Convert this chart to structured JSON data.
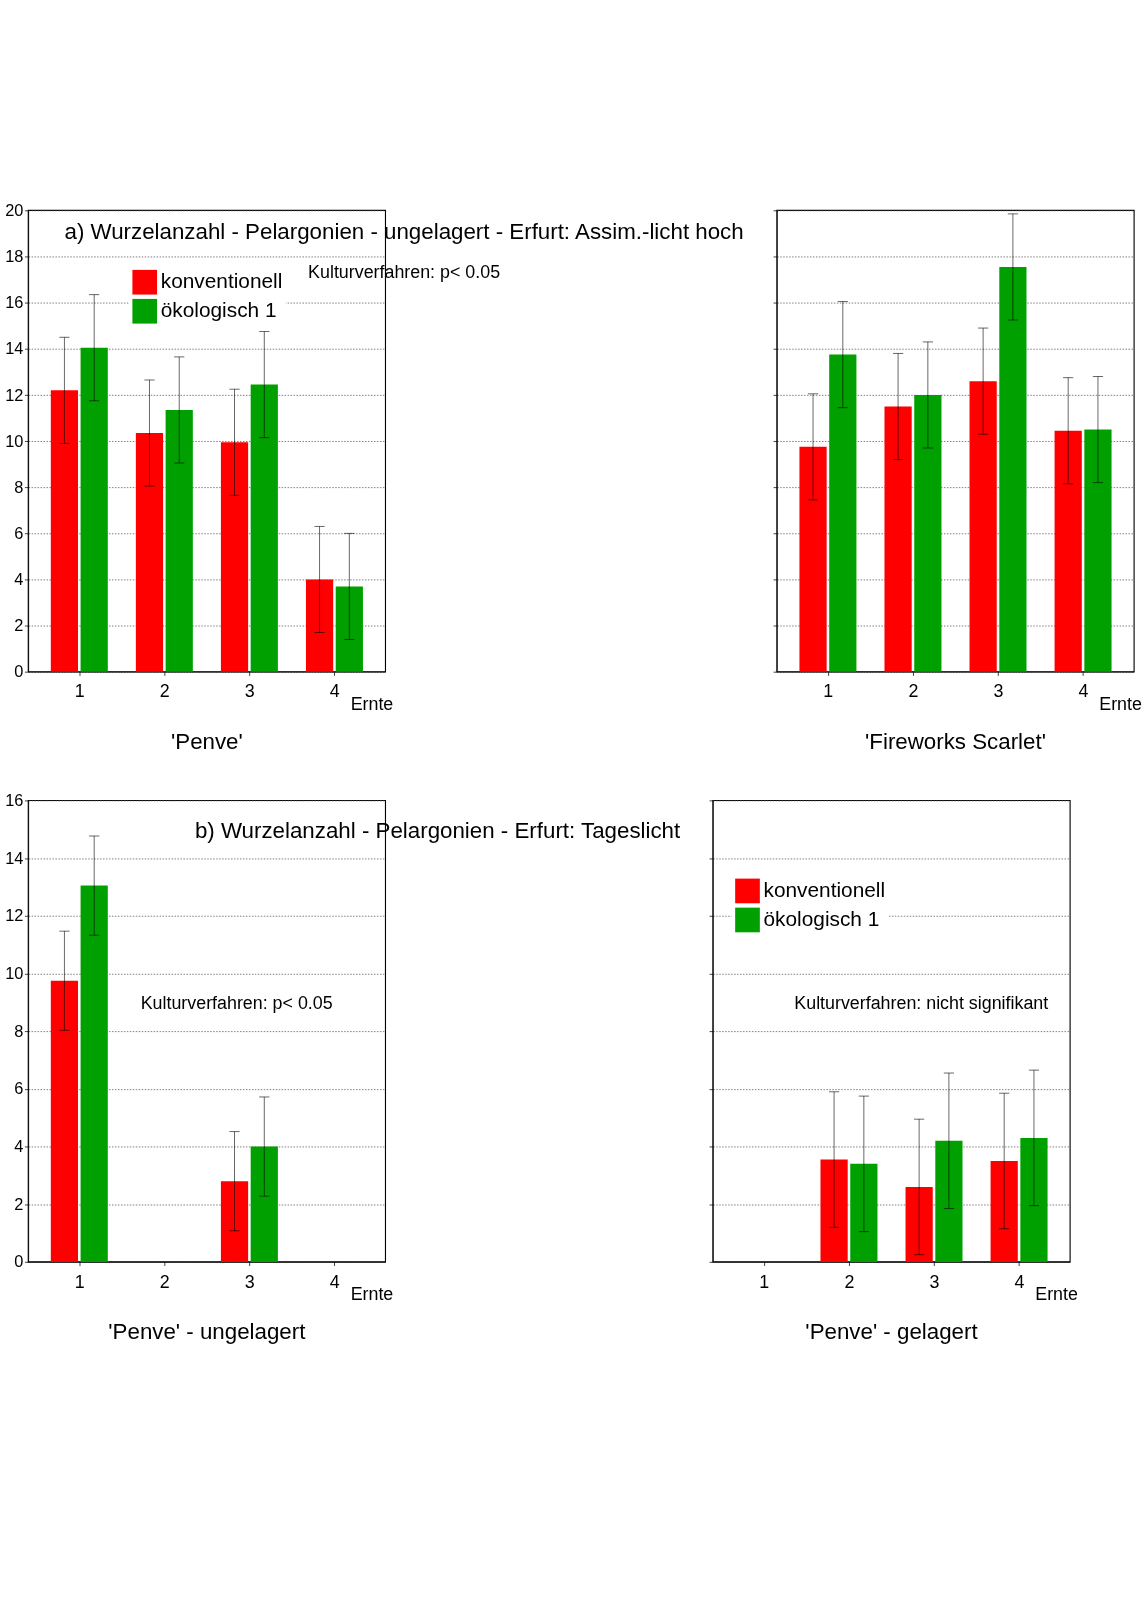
{
  "chart_data": [
    {
      "type": "bar",
      "title": "'Penve'",
      "xlabel": "Ernte",
      "categories": [
        "1",
        "2",
        "3",
        "4"
      ],
      "ylim": [
        0,
        20
      ],
      "yticks": [
        0,
        2,
        4,
        6,
        8,
        10,
        12,
        14,
        16,
        18,
        20
      ],
      "grid": "y",
      "legend": "top left",
      "annotations": [
        "a) Wurzelanzahl - Pelargonien - ungelagert - Erfurt: Assim.-licht hoch",
        "Kulturverfahren: p< 0.05"
      ],
      "series": [
        {
          "name": "konventionell",
          "color": "#ff0000",
          "values": [
            12.2,
            10.35,
            9.95,
            4.0
          ],
          "errors": [
            2.3,
            2.3,
            2.3,
            2.3
          ]
        },
        {
          "name": "ökologisch 1",
          "color": "#00a000",
          "values": [
            14.05,
            11.35,
            12.45,
            3.7
          ],
          "errors": [
            2.3,
            2.3,
            2.3,
            2.3
          ]
        }
      ]
    },
    {
      "type": "bar",
      "title": "'Fireworks Scarlet'",
      "xlabel": "Ernte",
      "categories": [
        "1",
        "2",
        "3",
        "4"
      ],
      "ylim": [
        0,
        20
      ],
      "yticks": [
        0,
        2,
        4,
        6,
        8,
        10,
        12,
        14,
        16,
        18,
        20
      ],
      "grid": "y",
      "tick_labels": "x",
      "series": [
        {
          "color": "#ff0000",
          "values": [
            9.75,
            11.5,
            12.6,
            10.45
          ],
          "errors": [
            2.3,
            2.3,
            2.3,
            2.3
          ]
        },
        {
          "color": "#00a000",
          "values": [
            13.75,
            12.0,
            17.55,
            10.5
          ],
          "errors": [
            2.3,
            2.3,
            2.3,
            2.3
          ]
        }
      ]
    },
    {
      "type": "bar",
      "title": "'Penve' - ungelagert",
      "xlabel": "Ernte",
      "categories": [
        "1",
        "2",
        "3",
        "4"
      ],
      "ylim": [
        0,
        16
      ],
      "yticks": [
        0,
        2,
        4,
        6,
        8,
        10,
        12,
        14,
        16
      ],
      "grid": "y",
      "annotations": [
        "b) Wurzelanzahl - Pelargonien - Erfurt: Tageslicht",
        "Kulturverfahren: p< 0.05"
      ],
      "series": [
        {
          "color": "#ff0000",
          "values": [
            9.75,
            null,
            2.8,
            null
          ],
          "errors": [
            1.72,
            null,
            1.72,
            null
          ]
        },
        {
          "color": "#00a000",
          "values": [
            13.05,
            null,
            4.0,
            null
          ],
          "errors": [
            1.72,
            null,
            1.72,
            null
          ]
        }
      ]
    },
    {
      "type": "bar",
      "title": "'Penve' - gelagert",
      "xlabel": "Ernte",
      "categories": [
        "1",
        "2",
        "3",
        "4"
      ],
      "ylim": [
        0,
        16
      ],
      "yticks": [
        0,
        2,
        4,
        6,
        8,
        10,
        12,
        14,
        16
      ],
      "grid": "y",
      "tick_labels": "x",
      "legend": "top left",
      "annotations": [
        "Kulturverfahren: nicht signifikant"
      ],
      "series": [
        {
          "name": "konventionell",
          "color": "#ff0000",
          "values": [
            null,
            3.55,
            2.6,
            3.5
          ],
          "errors": [
            null,
            2.35,
            2.35,
            2.35
          ]
        },
        {
          "name": "ökologisch 1",
          "color": "#00a000",
          "values": [
            null,
            3.4,
            4.2,
            4.3
          ],
          "errors": [
            null,
            2.35,
            2.35,
            2.35
          ]
        }
      ]
    }
  ]
}
